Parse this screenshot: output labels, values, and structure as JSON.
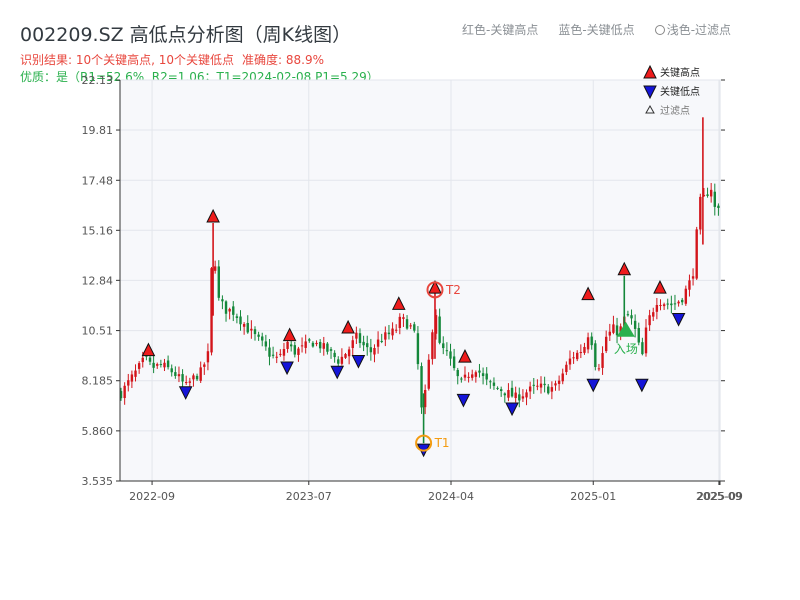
{
  "header": {
    "title": "002209.SZ 高低点分析图（周K线图）",
    "result_text": "识别结果: 10个关键高点, 10个关键低点",
    "accuracy_text": "准确度: 88.9%",
    "quality_text": "优质：是（R1=52.6%, R2=1.06；T1=2024-02-08 P1=5.29）"
  },
  "top_legend": {
    "red": "红色-关键高点",
    "blue": "蓝色-关键低点",
    "light": "浅色-过滤点"
  },
  "colors": {
    "up": "#d3151b",
    "down": "#14873a",
    "high_marker": "#ee1c1c",
    "low_marker": "#1515d8",
    "ring_high": "#e8473e",
    "ring_low": "#f39c12",
    "entry": "#2ab04d",
    "plot_bg": "#f7f8fb",
    "grid": "#e3e6ec"
  },
  "chart_data": {
    "type": "candlestick",
    "yticks": [
      3.535,
      5.86,
      8.185,
      10.51,
      12.84,
      15.16,
      17.48,
      19.81,
      22.13
    ],
    "ytick_labels": [
      "3.535",
      "5.860",
      "8.185",
      "10.51",
      "12.84",
      "15.16",
      "17.48",
      "19.81",
      "22.13"
    ],
    "ylim": [
      3.535,
      22.13
    ],
    "xlim": [
      "2022-07-01",
      "2025-09-05"
    ],
    "xticks": [
      "2022-09-01",
      "2023-07-01",
      "2024-04-01",
      "2025-01-01",
      "2025-09-01",
      "2025-09-03"
    ],
    "xtick_labels": [
      "2022-09",
      "2023-07",
      "2024-04",
      "2025-01",
      "2025-09",
      "2025-09"
    ],
    "legend": [
      {
        "label": "关键高点",
        "symbol": "triangle-up",
        "color": "#ee1c1c"
      },
      {
        "label": "关键低点",
        "symbol": "triangle-down",
        "color": "#1515d8"
      },
      {
        "label": "过滤点",
        "symbol": "triangle-up-outline",
        "color": "#333333"
      }
    ],
    "anchors": [
      [
        "2022-07-03",
        7.6
      ],
      [
        "2022-07-20",
        8.2
      ],
      [
        "2022-08-01",
        8.6
      ],
      [
        "2022-08-18",
        9.2
      ],
      [
        "2022-09-01",
        8.8
      ],
      [
        "2022-09-20",
        8.9
      ],
      [
        "2022-10-05",
        8.7
      ],
      [
        "2022-10-20",
        8.4
      ],
      [
        "2022-11-05",
        7.9
      ],
      [
        "2022-11-20",
        8.3
      ],
      [
        "2022-12-05",
        8.6
      ],
      [
        "2022-12-20",
        9.5
      ],
      [
        "2022-12-28",
        15.5
      ],
      [
        "2023-01-05",
        12.0
      ],
      [
        "2023-01-20",
        11.5
      ],
      [
        "2023-02-05",
        11.4
      ],
      [
        "2023-02-20",
        11.0
      ],
      [
        "2023-03-05",
        10.6
      ],
      [
        "2023-03-20",
        10.2
      ],
      [
        "2023-04-05",
        9.8
      ],
      [
        "2023-04-20",
        9.3
      ],
      [
        "2023-05-05",
        9.2
      ],
      [
        "2023-05-20",
        10.0
      ],
      [
        "2023-06-01",
        9.5
      ],
      [
        "2023-06-20",
        9.7
      ],
      [
        "2023-07-05",
        10.0
      ],
      [
        "2023-07-25",
        9.8
      ],
      [
        "2023-08-10",
        9.5
      ],
      [
        "2023-08-28",
        9.1
      ],
      [
        "2023-09-15",
        9.6
      ],
      [
        "2023-10-01",
        10.2
      ],
      [
        "2023-10-15",
        9.8
      ],
      [
        "2023-10-28",
        9.5
      ],
      [
        "2023-11-15",
        10.1
      ],
      [
        "2023-12-01",
        10.3
      ],
      [
        "2023-12-15",
        10.5
      ],
      [
        "2023-12-25",
        11.0
      ],
      [
        "2024-01-05",
        10.9
      ],
      [
        "2024-01-20",
        10.5
      ],
      [
        "2024-01-30",
        8.5
      ],
      [
        "2024-02-05",
        6.5
      ],
      [
        "2024-02-08",
        6.9
      ],
      [
        "2024-02-20",
        9.5
      ],
      [
        "2024-03-01",
        11.8
      ],
      [
        "2024-03-10",
        9.8
      ],
      [
        "2024-03-25",
        9.4
      ],
      [
        "2024-04-10",
        8.5
      ],
      [
        "2024-04-20",
        8.0
      ],
      [
        "2024-05-05",
        8.5
      ],
      [
        "2024-05-20",
        8.8
      ],
      [
        "2024-06-05",
        8.2
      ],
      [
        "2024-06-20",
        7.9
      ],
      [
        "2024-07-05",
        7.8
      ],
      [
        "2024-07-20",
        7.6
      ],
      [
        "2024-08-05",
        7.4
      ],
      [
        "2024-08-20",
        7.6
      ],
      [
        "2024-09-05",
        7.8
      ],
      [
        "2024-09-20",
        7.9
      ],
      [
        "2024-10-05",
        7.8
      ],
      [
        "2024-10-20",
        7.9
      ],
      [
        "2024-11-05",
        8.6
      ],
      [
        "2024-11-20",
        9.3
      ],
      [
        "2024-12-05",
        9.5
      ],
      [
        "2024-12-15",
        9.8
      ],
      [
        "2024-12-25",
        10.6
      ],
      [
        "2025-01-05",
        9.0
      ],
      [
        "2025-01-15",
        8.9
      ],
      [
        "2025-01-25",
        10.2
      ],
      [
        "2025-02-10",
        10.6
      ],
      [
        "2025-02-20",
        10.4
      ],
      [
        "2025-03-01",
        11.0
      ],
      [
        "2025-03-10",
        11.2
      ],
      [
        "2025-03-20",
        10.8
      ],
      [
        "2025-03-28",
        10.0
      ],
      [
        "2025-04-05",
        9.2
      ],
      [
        "2025-04-15",
        10.8
      ],
      [
        "2025-04-25",
        11.4
      ],
      [
        "2025-05-05",
        12.0
      ],
      [
        "2025-05-20",
        11.8
      ],
      [
        "2025-06-05",
        11.7
      ],
      [
        "2025-06-20",
        12.0
      ],
      [
        "2025-07-05",
        12.6
      ],
      [
        "2025-07-15",
        13.5
      ],
      [
        "2025-07-25",
        16.3
      ],
      [
        "2025-08-05",
        16.6
      ],
      [
        "2025-08-15",
        17.5
      ],
      [
        "2025-08-25",
        16.0
      ],
      [
        "2025-09-05",
        16.2
      ]
    ],
    "key_highs": [
      {
        "date": "2022-08-25",
        "price": 9.3
      },
      {
        "date": "2022-12-28",
        "price": 15.5
      },
      {
        "date": "2023-05-25",
        "price": 10.0
      },
      {
        "date": "2023-09-15",
        "price": 10.35
      },
      {
        "date": "2023-12-22",
        "price": 11.45
      },
      {
        "date": "2024-03-01",
        "price": 12.2
      },
      {
        "date": "2024-04-28",
        "price": 9.0
      },
      {
        "date": "2024-12-22",
        "price": 11.9
      },
      {
        "date": "2025-03-02",
        "price": 13.05
      },
      {
        "date": "2025-05-10",
        "price": 12.2
      }
    ],
    "key_lows": [
      {
        "date": "2022-11-05",
        "price": 7.95
      },
      {
        "date": "2023-05-20",
        "price": 9.1
      },
      {
        "date": "2023-08-25",
        "price": 8.9
      },
      {
        "date": "2023-10-05",
        "price": 9.4
      },
      {
        "date": "2024-02-08",
        "price": 5.29
      },
      {
        "date": "2024-04-25",
        "price": 7.6
      },
      {
        "date": "2024-07-28",
        "price": 7.2
      },
      {
        "date": "2025-01-01",
        "price": 8.3
      },
      {
        "date": "2025-04-05",
        "price": 8.3
      },
      {
        "date": "2025-06-15",
        "price": 11.35
      }
    ],
    "t1": {
      "label": "T1",
      "date": "2024-02-08",
      "price": 5.29
    },
    "t2": {
      "label": "T2",
      "date": "2024-03-01",
      "price": 12.4
    },
    "entry": {
      "label": "入场",
      "date": "2025-03-05",
      "price": 10.5
    }
  }
}
